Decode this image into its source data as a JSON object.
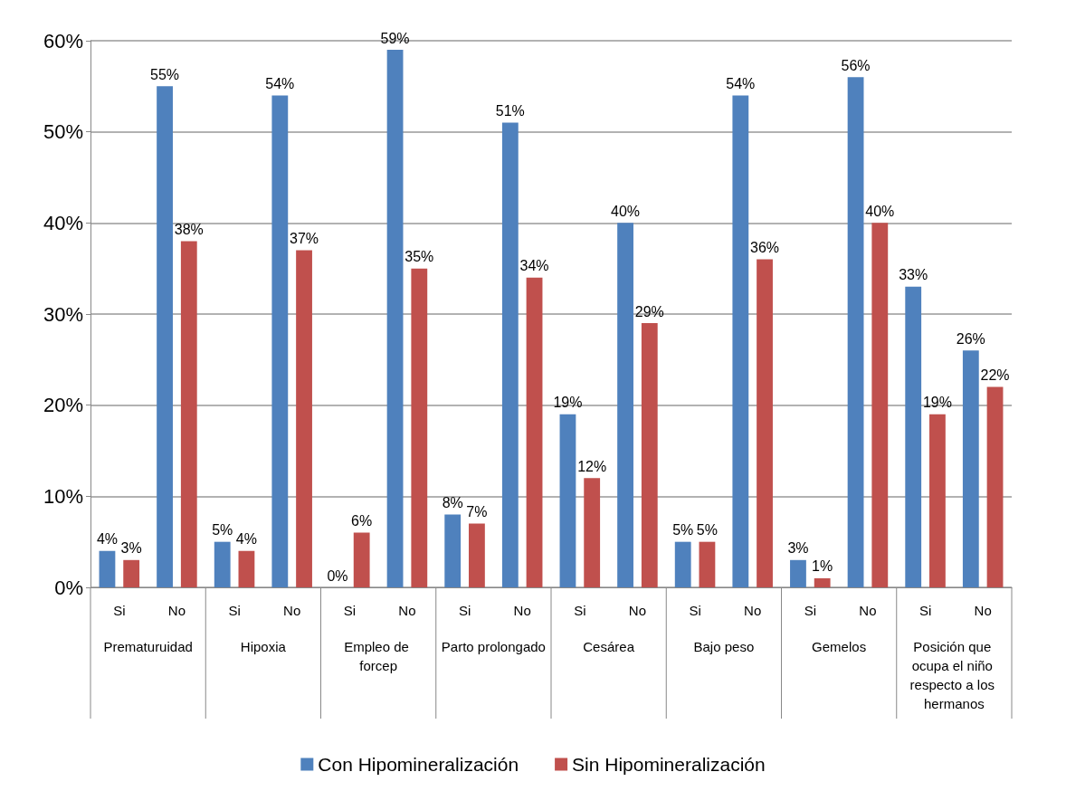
{
  "chart_data": {
    "type": "bar",
    "categories": [
      "Si",
      "No",
      "Si",
      "No",
      "Si",
      "No",
      "Si",
      "No",
      "Si",
      "No",
      "Si",
      "No",
      "Si",
      "No",
      "Si",
      "No"
    ],
    "annotations": [
      "Prematuruidad",
      "Hipoxia",
      "Empleo de forcep",
      "Parto prolongado",
      "Cesárea",
      "Bajo peso",
      "Gemelos",
      "Posición que ocupa el niño respecto a los hermanos"
    ],
    "series": [
      {
        "name": "Con Hipomineralización",
        "color": "#4f81bd",
        "values": [
          4,
          55,
          5,
          54,
          0,
          59,
          8,
          51,
          19,
          40,
          5,
          54,
          3,
          56,
          33,
          26
        ],
        "value_labels": [
          "4%",
          "55%",
          "5%",
          "54%",
          "0%",
          "59%",
          "8%",
          "51%",
          "19%",
          "40%",
          "5%",
          "54%",
          "3%",
          "56%",
          "33%",
          "26%"
        ]
      },
      {
        "name": "Sin Hipomineralización",
        "color": "#c0504d",
        "values": [
          3,
          38,
          4,
          37,
          6,
          35,
          7,
          34,
          12,
          29,
          5,
          36,
          1,
          40,
          19,
          22
        ],
        "value_labels": [
          "3%",
          "38%",
          "4%",
          "37%",
          "6%",
          "35%",
          "7%",
          "34%",
          "12%",
          "29%",
          "5%",
          "36%",
          "1%",
          "40%",
          "19%",
          "22%"
        ]
      }
    ],
    "ylim": [
      0,
      60
    ],
    "yticks": [
      {
        "value": 0,
        "label": "0%"
      },
      {
        "value": 10,
        "label": "10%"
      },
      {
        "value": 20,
        "label": "20%"
      },
      {
        "value": 30,
        "label": "30%"
      },
      {
        "value": 40,
        "label": "40%"
      },
      {
        "value": 50,
        "label": "50%"
      },
      {
        "value": 60,
        "label": "60%"
      }
    ],
    "grid": "y",
    "legend": "bottom"
  }
}
